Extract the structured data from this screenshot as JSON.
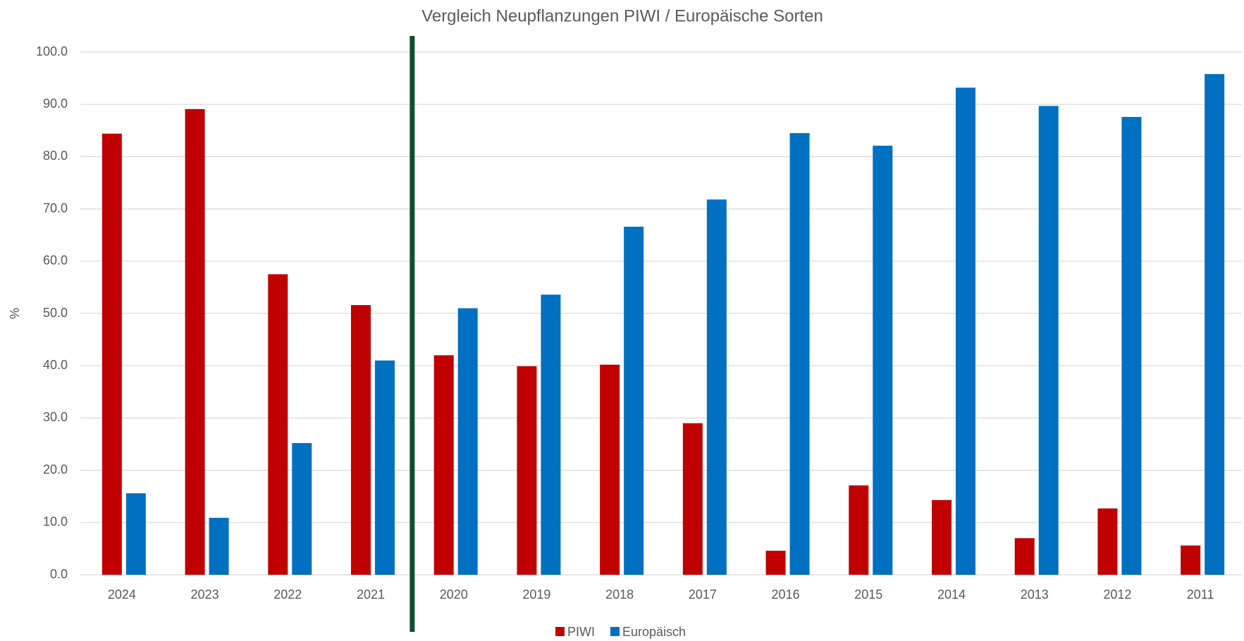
{
  "chart_data": {
    "type": "bar",
    "title": "Vergleich Neupflanzungen PIWI / Europäische Sorten",
    "y_label": "%",
    "categories": [
      "2024",
      "2023",
      "2022",
      "2021",
      "2020",
      "2019",
      "2018",
      "2017",
      "2016",
      "2015",
      "2014",
      "2013",
      "2012",
      "2011"
    ],
    "series": [
      {
        "name": "PIWI",
        "color": "#c00000",
        "values": [
          84.4,
          89.1,
          57.5,
          51.6,
          42.0,
          39.9,
          40.2,
          29.0,
          4.6,
          17.1,
          14.3,
          7.0,
          12.7,
          5.6
        ]
      },
      {
        "name": "Europäisch",
        "color": "#0070c0",
        "values": [
          15.6,
          10.9,
          25.2,
          41.0,
          51.0,
          53.6,
          66.6,
          71.8,
          84.5,
          82.1,
          93.2,
          89.7,
          87.6,
          95.8
        ]
      }
    ],
    "ylim": [
      0,
      100
    ],
    "yticks": [
      {
        "value": 0,
        "label": "0.0"
      },
      {
        "value": 10,
        "label": "10.0"
      },
      {
        "value": 20,
        "label": "20.0"
      },
      {
        "value": 30,
        "label": "30.0"
      },
      {
        "value": 40,
        "label": "40.0"
      },
      {
        "value": 50,
        "label": "50.0"
      },
      {
        "value": 60,
        "label": "60.0"
      },
      {
        "value": 70,
        "label": "70.0"
      },
      {
        "value": 80,
        "label": "80.0"
      },
      {
        "value": 90,
        "label": "90.0"
      },
      {
        "value": 100,
        "label": "100.0"
      }
    ],
    "grid": true,
    "legend": "bottom"
  }
}
